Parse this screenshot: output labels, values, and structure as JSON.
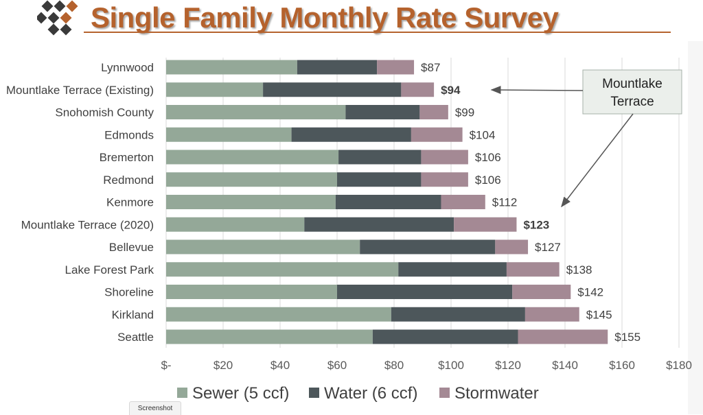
{
  "header": {
    "title": "Single Family Monthly Rate Survey"
  },
  "screenshot_tab": {
    "label": "Screenshot"
  },
  "chart_data": {
    "type": "bar",
    "orientation": "horizontal",
    "stacked": true,
    "categories": [
      "Lynnwood",
      "Mountlake Terrace (Existing)",
      "Snohomish County",
      "Edmonds",
      "Bremerton",
      "Redmond",
      "Kenmore",
      "Mountlake Terrace (2020)",
      "Bellevue",
      "Lake Forest Park",
      "Shoreline",
      "Kirkland",
      "Seattle"
    ],
    "series": [
      {
        "name": "Sewer (5 ccf)",
        "color": "#94a898",
        "values": [
          46,
          34,
          63,
          44,
          60.5,
          60,
          59.5,
          48.5,
          68,
          81.5,
          60,
          79,
          72.5
        ]
      },
      {
        "name": "Water (6 ccf)",
        "color": "#4d575b",
        "values": [
          28,
          48.5,
          26,
          42,
          29,
          29.5,
          37,
          52.5,
          47.5,
          38,
          61.5,
          47,
          51
        ]
      },
      {
        "name": "Stormwater",
        "color": "#a48994",
        "values": [
          13,
          11.5,
          10,
          18,
          16.5,
          16.5,
          15.5,
          22,
          11.5,
          18.5,
          20.5,
          19,
          31.5
        ]
      }
    ],
    "totals": [
      "$87",
      "$94",
      "$99",
      "$104",
      "$106",
      "$106",
      "$112",
      "$123",
      "$127",
      "$138",
      "$142",
      "$145",
      "$155"
    ],
    "bold_totals": [
      false,
      true,
      false,
      false,
      false,
      false,
      false,
      true,
      false,
      false,
      false,
      false,
      false
    ],
    "x_ticks": [
      0,
      20,
      40,
      60,
      80,
      100,
      120,
      140,
      160,
      180
    ],
    "x_tick_labels": [
      "$-",
      "$20",
      "$40",
      "$60",
      "$80",
      "$100",
      "$120",
      "$140",
      "$160",
      "$180"
    ],
    "xlim": [
      0,
      180
    ],
    "grid": true,
    "legend_position": "bottom",
    "annotation": {
      "text_lines": [
        "Mountlake",
        "Terrace"
      ],
      "points_to": [
        "Mountlake Terrace (Existing)",
        "Mountlake Terrace (2020)"
      ]
    }
  }
}
